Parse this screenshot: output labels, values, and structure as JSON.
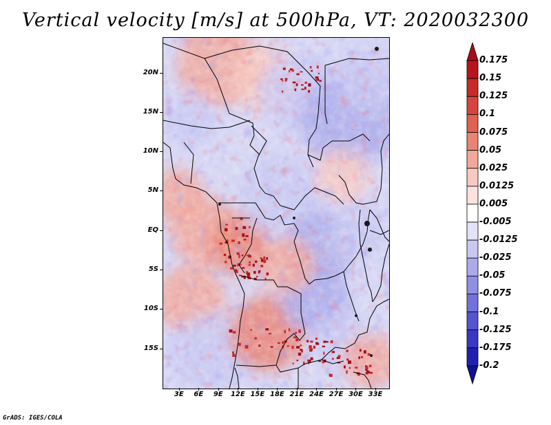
{
  "title": "Vertical velocity [m/s] at 500hPa, VT: 2020032300",
  "credit": "GrADS: IGES/COLA",
  "map": {
    "variable": "Vertical velocity",
    "units": "m/s",
    "level": "500hPa",
    "valid_time": "2020032300",
    "lat_labels": [
      "20N",
      "15N",
      "10N",
      "5N",
      "EQ",
      "5S",
      "10S",
      "15S"
    ],
    "lon_labels": [
      "3E",
      "6E",
      "9E",
      "12E",
      "15E",
      "18E",
      "21E",
      "24E",
      "27E",
      "30E",
      "33E"
    ],
    "lat_values": [
      20,
      15,
      10,
      5,
      0,
      -5,
      -10,
      -15
    ],
    "lon_values": [
      3,
      6,
      9,
      12,
      15,
      18,
      21,
      24,
      27,
      30,
      33
    ],
    "lat_range": [
      -20,
      24.5
    ],
    "lon_range": [
      0.5,
      35
    ],
    "boundary_color": "#000000"
  },
  "colorbar": {
    "labels": [
      "0.175",
      "0.15",
      "0.125",
      "0.1",
      "0.075",
      "0.05",
      "0.025",
      "0.0125",
      "0.005",
      "-0.005",
      "-0.0125",
      "-0.025",
      "-0.05",
      "-0.075",
      "-0.1",
      "-0.125",
      "-0.175",
      "-0.2"
    ],
    "colors": [
      "#a50f15",
      "#b8141c",
      "#c82a2a",
      "#d6443c",
      "#e0624f",
      "#ea8373",
      "#f3a79a",
      "#f8c9c0",
      "#fbe2dc",
      "#ffffff",
      "#e3e3f7",
      "#c8c8f2",
      "#ababeb",
      "#8f8fe3",
      "#7272da",
      "#5555d0",
      "#3838c3",
      "#2020b0",
      "#120f95"
    ]
  }
}
